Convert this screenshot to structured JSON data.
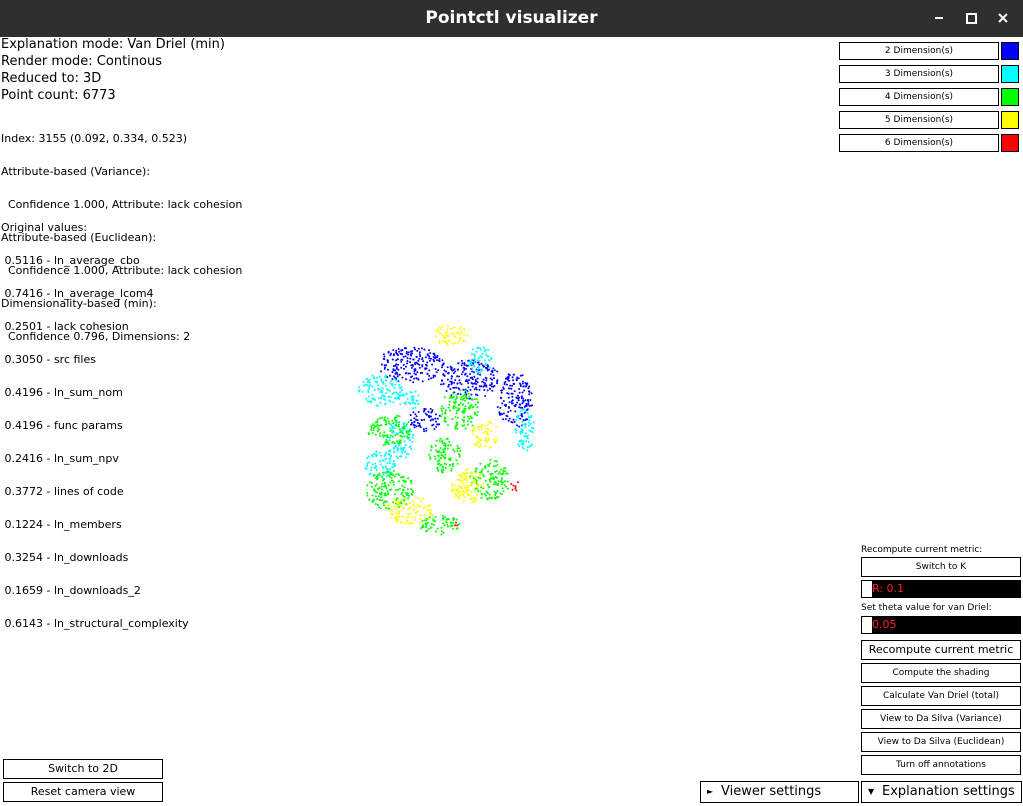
{
  "window": {
    "title": "Pointctl visualizer"
  },
  "status": {
    "explanation_mode": "Explanation mode: Van Driel (min)",
    "render_mode": "Render mode: Continous",
    "reduced_to": "Reduced to: 3D",
    "point_count": "Point count: 6773"
  },
  "info_lines": [
    "Index: 3155 (0.092, 0.334, 0.523)",
    "Attribute-based (Variance):",
    "  Confidence 1.000, Attribute: lack cohesion",
    "Attribute-based (Euclidean):",
    "  Confidence 1.000, Attribute: lack cohesion",
    "Dimensionality-based (min):",
    "  Confidence 0.796, Dimensions: 2"
  ],
  "original_values_title": "Original values:",
  "original_values": [
    " 0.5116 - ln_average_cbo",
    " 0.7416 - ln_average_lcom4",
    " 0.2501 - lack cohesion",
    " 0.3050 - src files",
    " 0.4196 - ln_sum_nom",
    " 0.4196 - func params",
    " 0.2416 - ln_sum_npv",
    " 0.3772 - lines of code",
    " 0.1224 - ln_members",
    " 0.3254 - ln_downloads",
    " 0.1659 - ln_downloads_2",
    " 0.6143 - ln_structural_complexity"
  ],
  "legend": [
    {
      "label": "2 Dimension(s)",
      "color": "#0000ff"
    },
    {
      "label": "3 Dimension(s)",
      "color": "#00ffff"
    },
    {
      "label": "4 Dimension(s)",
      "color": "#00ff00"
    },
    {
      "label": "5 Dimension(s)",
      "color": "#ffff00"
    },
    {
      "label": "6 Dimension(s)",
      "color": "#ff0000"
    }
  ],
  "controls": {
    "recompute_label": "Recompute current metric:",
    "switch_k": "Switch to K",
    "k_value": "R: 0.1",
    "theta_label": "Set theta value for van Driel:",
    "theta_value": "0.05",
    "recompute_btn": "Recompute current metric",
    "shading_btn": "Compute the shading",
    "vandriel_btn": "Calculate Van Driel (total)",
    "dasilva_var_btn": "View to Da Silva (Variance)",
    "dasilva_euc_btn": "View to Da Silva (Euclidean)",
    "annotations_btn": "Turn off annotations"
  },
  "bottom": {
    "switch_2d": "Switch to 2D",
    "reset_camera": "Reset camera view",
    "viewer_settings": "Viewer settings",
    "explanation_settings": "Explanation settings"
  },
  "icons": {
    "minimize": "minimize-icon",
    "maximize": "maximize-icon",
    "close": "close-icon",
    "viewer_arrow": "collapse-arrow-icon",
    "explanation_arrow": "collapse-arrow-icon"
  }
}
